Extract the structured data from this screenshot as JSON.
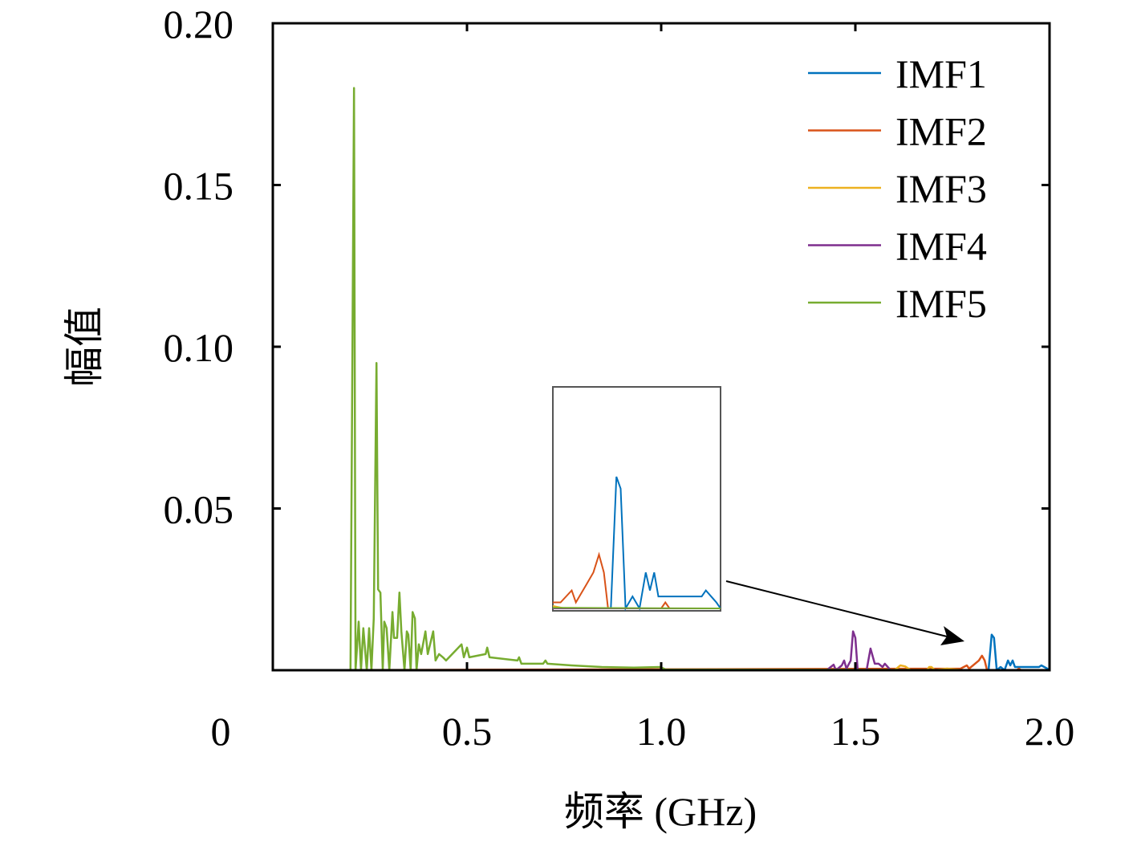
{
  "chart_data": {
    "type": "line",
    "xlabel": "频率 (GHz)",
    "ylabel": "幅值",
    "xlim": [
      0,
      2.0
    ],
    "ylim": [
      0,
      0.2
    ],
    "xticks": [
      0,
      0.5,
      1.0,
      1.5,
      2.0
    ],
    "xtick_labels": [
      "0",
      "0.5",
      "1.0",
      "1.5",
      "2.0"
    ],
    "yticks": [
      0.05,
      0.1,
      0.15,
      0.2
    ],
    "ytick_labels": [
      "0.05",
      "0.10",
      "0.15",
      "0.20"
    ],
    "grid": false,
    "legend_position": "top-right",
    "series": [
      {
        "name": "IMF1",
        "color": "#0072BD",
        "x": [
          0,
          1.843,
          1.851,
          1.857,
          1.864,
          1.874,
          1.884,
          1.893,
          1.899,
          1.905,
          1.911,
          1.973,
          1.979,
          1.994,
          2.0
        ],
        "y": [
          0,
          0,
          0.011,
          0.01,
          0,
          0.001,
          0,
          0.003,
          0.0015,
          0.003,
          0.001,
          0.001,
          0.0015,
          0.0005,
          0
        ]
      },
      {
        "name": "IMF2",
        "color": "#D95319",
        "x": [
          0,
          1.771,
          1.787,
          1.793,
          1.808,
          1.818,
          1.826,
          1.833,
          1.839,
          1.915,
          1.921,
          1.927,
          2.0
        ],
        "y": [
          0,
          0.0005,
          0.0015,
          0.0005,
          0.002,
          0.003,
          0.0045,
          0.003,
          0,
          0,
          0.0005,
          0,
          0
        ]
      },
      {
        "name": "IMF3",
        "color": "#EDB120",
        "x": [
          0,
          1.601,
          1.616,
          1.628,
          1.643,
          1.684,
          1.69,
          1.696,
          1.705,
          1.736,
          1.777,
          2.0
        ],
        "y": [
          0,
          0,
          0.0015,
          0.0012,
          0,
          0,
          0.001,
          0.001,
          0,
          0.0005,
          0,
          0
        ]
      },
      {
        "name": "IMF4",
        "color": "#7E2F8E",
        "x": [
          0,
          1.426,
          1.444,
          1.45,
          1.465,
          1.471,
          1.477,
          1.488,
          1.494,
          1.5,
          1.506,
          1.529,
          1.539,
          1.55,
          1.56,
          1.57,
          1.576,
          1.591,
          2.0
        ],
        "y": [
          0,
          0,
          0.0017,
          0,
          0.0015,
          0.003,
          0.0005,
          0.003,
          0.012,
          0.01,
          0,
          0,
          0.0067,
          0.002,
          0.002,
          0.001,
          0.002,
          0,
          0
        ]
      },
      {
        "name": "IMF5",
        "color": "#77AC30",
        "x": [
          0,
          0.2,
          0.209,
          0.213,
          0.221,
          0.227,
          0.233,
          0.242,
          0.248,
          0.254,
          0.26,
          0.267,
          0.271,
          0.277,
          0.283,
          0.287,
          0.293,
          0.3,
          0.308,
          0.312,
          0.32,
          0.326,
          0.331,
          0.339,
          0.345,
          0.349,
          0.355,
          0.36,
          0.366,
          0.37,
          0.376,
          0.382,
          0.393,
          0.399,
          0.413,
          0.419,
          0.428,
          0.438,
          0.446,
          0.486,
          0.492,
          0.5,
          0.506,
          0.548,
          0.552,
          0.558,
          0.63,
          0.634,
          0.64,
          0.696,
          0.702,
          0.707,
          0.769,
          0.847,
          0.93,
          0.998,
          1.012,
          1.157,
          2.0
        ],
        "y": [
          0,
          0,
          0.18,
          0,
          0.015,
          0,
          0.013,
          0,
          0.013,
          0,
          0.016,
          0.095,
          0.025,
          0.024,
          0,
          0.015,
          0.013,
          0,
          0.018,
          0.01,
          0.01,
          0.024,
          0.012,
          0,
          0.012,
          0.011,
          0,
          0.018,
          0.016,
          0,
          0.008,
          0.005,
          0.012,
          0.005,
          0.012,
          0.003,
          0.005,
          0.004,
          0.003,
          0.008,
          0.004,
          0.007,
          0.004,
          0.005,
          0.007,
          0.004,
          0.003,
          0.004,
          0.002,
          0.002,
          0.003,
          0.002,
          0.0015,
          0.001,
          0.0008,
          0.001,
          0.0002,
          0.0002,
          0
        ]
      }
    ],
    "inset": {
      "xlim": [
        1.76,
        2.0
      ],
      "ylim": [
        0,
        0.0185
      ],
      "arrow_points_to_x": 1.78
    }
  }
}
